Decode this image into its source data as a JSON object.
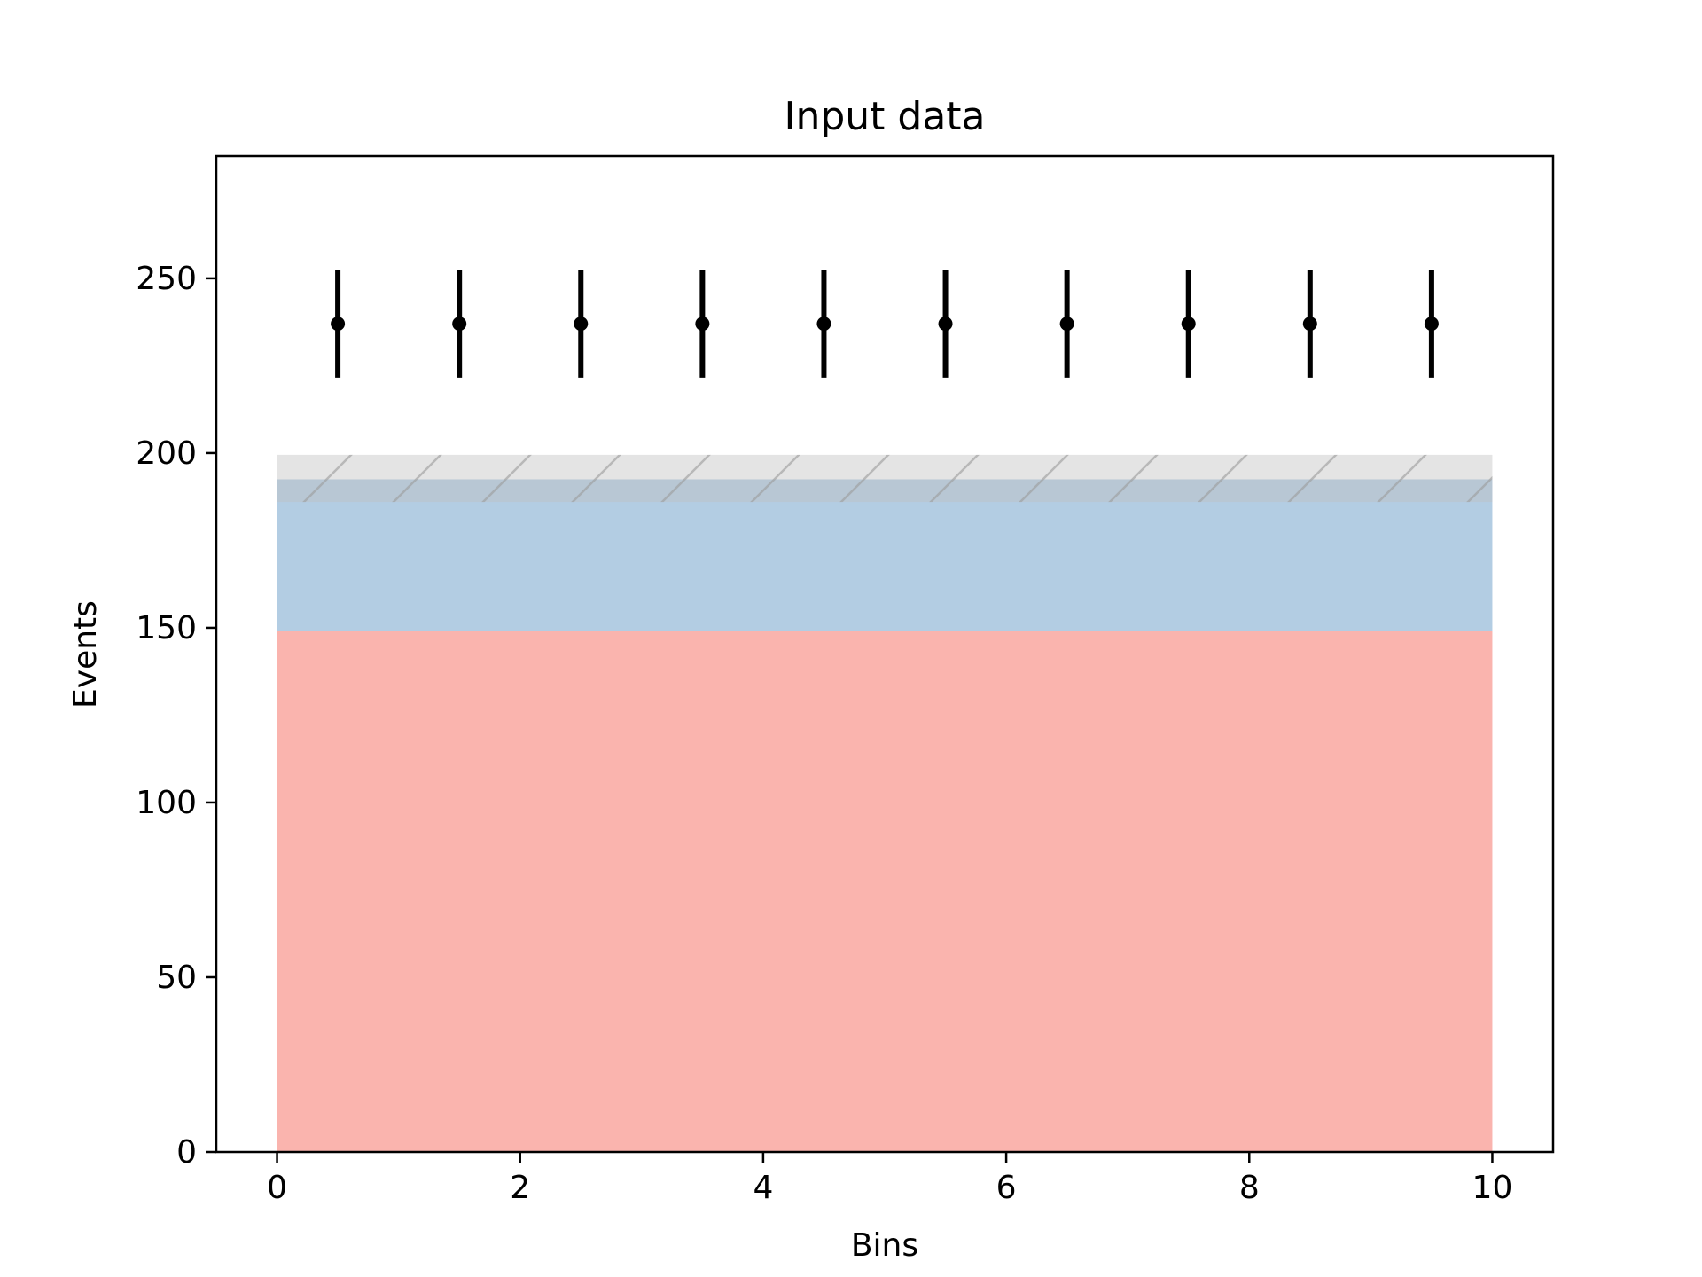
{
  "chart_data": {
    "type": "bar",
    "title": "Input data",
    "xlabel": "Bins",
    "ylabel": "Events",
    "xlim": [
      -0.5,
      10.5
    ],
    "ylim": [
      0,
      285
    ],
    "xticks": [
      0,
      2,
      4,
      6,
      8,
      10
    ],
    "yticks": [
      0,
      50,
      100,
      150,
      200,
      250
    ],
    "grid": false,
    "bin_edges": [
      0,
      10
    ],
    "stack": [
      {
        "bottom": 0,
        "top": 149,
        "color": "#fab4ae"
      },
      {
        "bottom": 149,
        "top": 192.5,
        "color": "#b3cde3"
      }
    ],
    "uncertainty_band": {
      "low": 186,
      "high": 199.5,
      "color": "#bfbfbf",
      "hatch": "/"
    },
    "data_points": {
      "x": [
        0.5,
        1.5,
        2.5,
        3.5,
        4.5,
        5.5,
        6.5,
        7.5,
        8.5,
        9.5
      ],
      "y": [
        237,
        237,
        237,
        237,
        237,
        237,
        237,
        237,
        237,
        237
      ],
      "yerr": [
        15.4,
        15.4,
        15.4,
        15.4,
        15.4,
        15.4,
        15.4,
        15.4,
        15.4,
        15.4
      ],
      "color": "#000000"
    }
  }
}
